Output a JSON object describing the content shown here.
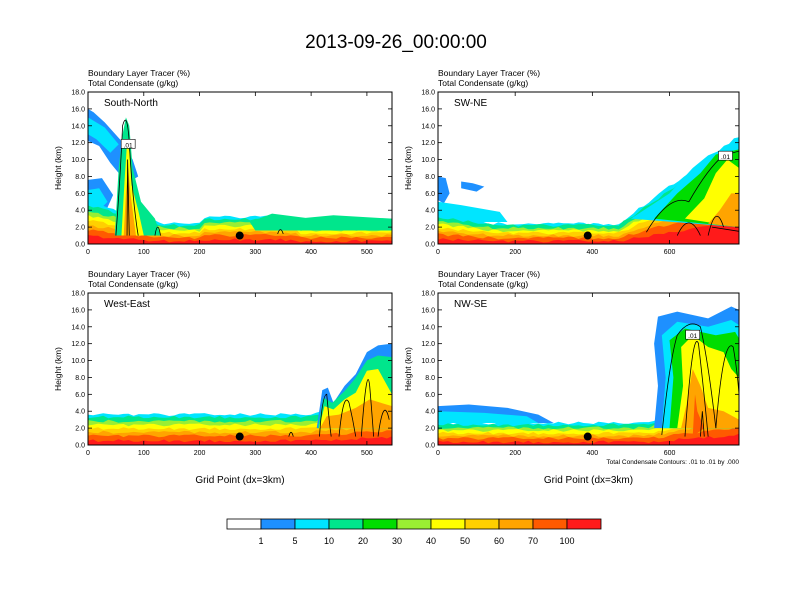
{
  "figure_title": "2013-09-26_00:00:00",
  "colors": {
    "bg": "#ffffff",
    "fill_levels": [
      "#ffffff",
      "#1e90ff",
      "#00e5ff",
      "#00e68c",
      "#00dd00",
      "#9aee33",
      "#ffff00",
      "#ffd000",
      "#ffa400",
      "#ff5a00",
      "#ff1a1a"
    ]
  },
  "colorbar": {
    "labels": [
      "1",
      "5",
      "10",
      "20",
      "30",
      "40",
      "50",
      "60",
      "70",
      "100"
    ]
  },
  "footnote": "Total Condensate Contours: .01 to .01 by .000",
  "chart_data": [
    {
      "type": "heatmap",
      "title": "South-North",
      "left_label_line1": "Boundary Layer Tracer   (%)",
      "left_label_line2": "Total Condensate   (g/kg)",
      "xlabel": "",
      "ylabel": "Height (km)",
      "xlim": [
        0,
        545
      ],
      "ylim": [
        0,
        18
      ],
      "xticks": [
        0,
        100,
        200,
        300,
        400,
        500
      ],
      "yticks": [
        "0.0",
        "2.0",
        "4.0",
        "6.0",
        "8.0",
        "10.0",
        "12.0",
        "14.0",
        "16.0",
        "18.0"
      ],
      "marker_x": 272,
      "marker_y": 1.0,
      "contour_label": ".01",
      "contour_label_pos": [
        72,
        11.8
      ]
    },
    {
      "type": "heatmap",
      "title": "SW-NE",
      "left_label_line1": "Boundary Layer Tracer   (%)",
      "left_label_line2": "Total Condensate   (g/kg)",
      "xlabel": "",
      "ylabel": "Height (km)",
      "xlim": [
        0,
        780
      ],
      "ylim": [
        0,
        18
      ],
      "xticks": [
        0,
        200,
        400,
        600
      ],
      "yticks": [
        "0.0",
        "2.0",
        "4.0",
        "6.0",
        "8.0",
        "10.0",
        "12.0",
        "14.0",
        "16.0",
        "18.0"
      ],
      "marker_x": 388,
      "marker_y": 1.0,
      "contour_label": ".01",
      "contour_label_pos": [
        745,
        10.4
      ]
    },
    {
      "type": "heatmap",
      "title": "West-East",
      "left_label_line1": "Boundary Layer Tracer   (%)",
      "left_label_line2": "Total Condensate   (g/kg)",
      "xlabel": "Grid Point (dx=3km)",
      "ylabel": "Height (km)",
      "xlim": [
        0,
        545
      ],
      "ylim": [
        0,
        18
      ],
      "xticks": [
        0,
        100,
        200,
        300,
        400,
        500
      ],
      "yticks": [
        "0.0",
        "2.0",
        "4.0",
        "6.0",
        "8.0",
        "10.0",
        "12.0",
        "14.0",
        "16.0",
        "18.0"
      ],
      "marker_x": 272,
      "marker_y": 1.0,
      "contour_label": "",
      "contour_label_pos": [
        0,
        0
      ]
    },
    {
      "type": "heatmap",
      "title": "NW-SE",
      "left_label_line1": "Boundary Layer Tracer   (%)",
      "left_label_line2": "Total Condensate   (g/kg)",
      "xlabel": "Grid Point (dx=3km)",
      "ylabel": "Height (km)",
      "xlim": [
        0,
        780
      ],
      "ylim": [
        0,
        18
      ],
      "xticks": [
        0,
        200,
        400,
        600
      ],
      "yticks": [
        "0.0",
        "2.0",
        "4.0",
        "6.0",
        "8.0",
        "10.0",
        "12.0",
        "14.0",
        "16.0",
        "18.0"
      ],
      "marker_x": 388,
      "marker_y": 1.0,
      "contour_label": ".01",
      "contour_label_pos": [
        660,
        13.0
      ]
    }
  ]
}
